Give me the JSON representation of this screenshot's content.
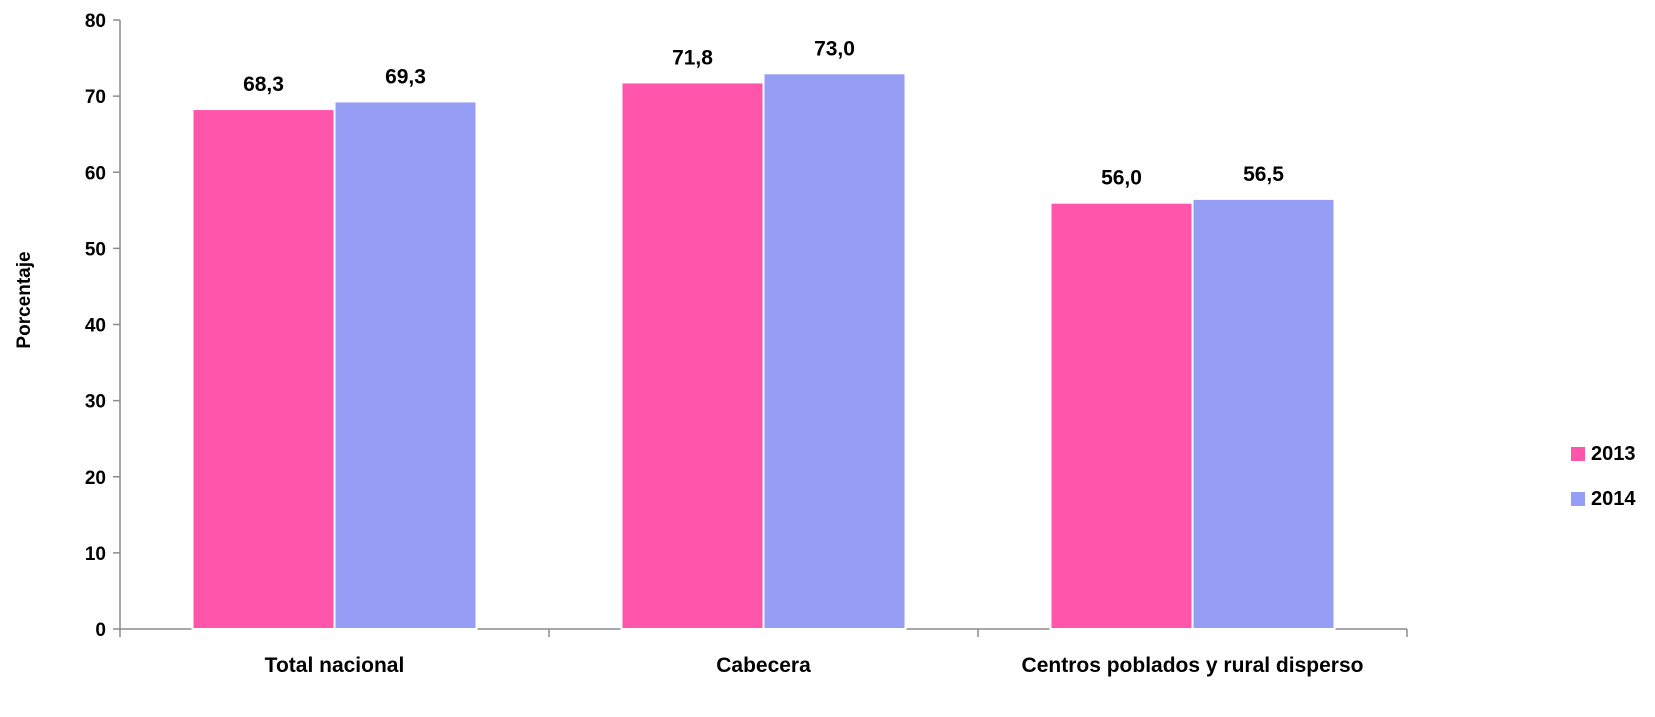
{
  "chart_data": {
    "type": "bar",
    "categories": [
      "Total nacional",
      "Cabecera",
      "Centros poblados y rural disperso"
    ],
    "series": [
      {
        "name": "2013",
        "values": [
          68.3,
          71.8,
          56.0
        ],
        "labels": [
          "68,3",
          "71,8",
          "56,0"
        ],
        "color": "#ff55aa"
      },
      {
        "name": "2014",
        "values": [
          69.3,
          73.0,
          56.5
        ],
        "labels": [
          "69,3",
          "73,0",
          "56,5"
        ],
        "color": "#959df5"
      }
    ],
    "title": "",
    "xlabel": "",
    "ylabel": "Porcentaje",
    "ylim": [
      0,
      80
    ],
    "yticks": [
      0,
      10,
      20,
      30,
      40,
      50,
      60,
      70,
      80
    ],
    "grid": false,
    "legend_position": "right"
  }
}
